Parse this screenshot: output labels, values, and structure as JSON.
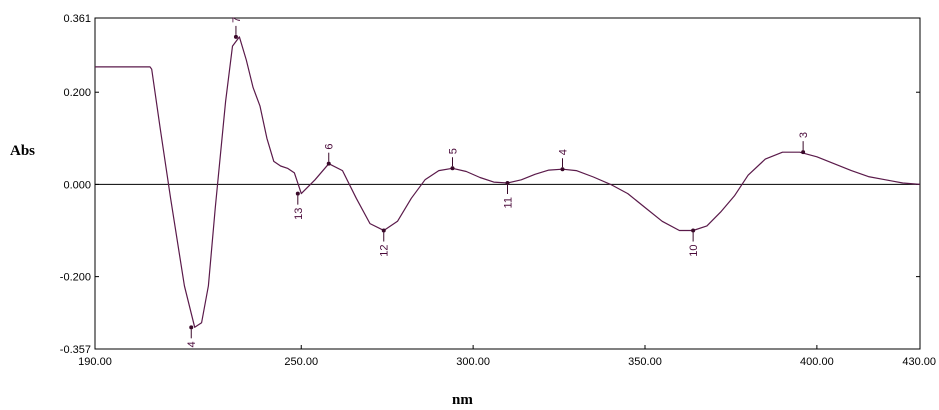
{
  "chart_data": {
    "type": "line",
    "xlabel": "nm",
    "ylabel": "Abs",
    "xlim": [
      190,
      430
    ],
    "ylim": [
      -0.357,
      0.361
    ],
    "x_ticks": [
      "190.00",
      "250.00",
      "300.00",
      "350.00",
      "400.00",
      "430.00"
    ],
    "x_tick_values": [
      190,
      250,
      300,
      350,
      400,
      430
    ],
    "y_ticks": [
      "0.361",
      "0.200",
      "0.000",
      "-0.200",
      "-0.357"
    ],
    "y_tick_values": [
      0.361,
      0.2,
      0.0,
      -0.2,
      -0.357
    ],
    "zero_line": true,
    "grid": false,
    "colors": {
      "curve": "#5a1a4a",
      "axis": "#000000",
      "marker": "#3a0a2a"
    },
    "series": [
      {
        "values_x": [
          190,
          206,
          206.5,
          209,
          212,
          216,
          219,
          221,
          223,
          225,
          228,
          230,
          232,
          234,
          236,
          238,
          240,
          242,
          244,
          246,
          248,
          250,
          254,
          258,
          262,
          266,
          270,
          274,
          278,
          282,
          286,
          290,
          294,
          298,
          302,
          306,
          310,
          314,
          318,
          322,
          326,
          330,
          335,
          340,
          345,
          350,
          355,
          360,
          364,
          368,
          372,
          376,
          380,
          385,
          390,
          395,
          400,
          405,
          410,
          415,
          420,
          425,
          430
        ],
        "values_y": [
          0.255,
          0.255,
          0.25,
          0.12,
          -0.03,
          -0.22,
          -0.31,
          -0.3,
          -0.22,
          -0.05,
          0.18,
          0.3,
          0.32,
          0.27,
          0.21,
          0.17,
          0.1,
          0.05,
          0.04,
          0.035,
          0.025,
          -0.02,
          0.01,
          0.045,
          0.03,
          -0.03,
          -0.085,
          -0.1,
          -0.08,
          -0.03,
          0.01,
          0.03,
          0.035,
          0.028,
          0.015,
          0.005,
          0.003,
          0.01,
          0.022,
          0.031,
          0.033,
          0.03,
          0.016,
          0.0,
          -0.02,
          -0.05,
          -0.08,
          -0.1,
          -0.1,
          -0.09,
          -0.06,
          -0.025,
          0.02,
          0.055,
          0.07,
          0.07,
          0.06,
          0.045,
          0.03,
          0.017,
          0.01,
          0.003,
          0.0
        ]
      }
    ],
    "annotations": [
      {
        "label": "7",
        "x": 231,
        "y": 0.32,
        "dir": "up"
      },
      {
        "label": "6",
        "x": 258,
        "y": 0.045,
        "dir": "up"
      },
      {
        "label": "5",
        "x": 294,
        "y": 0.035,
        "dir": "up"
      },
      {
        "label": "4",
        "x": 326,
        "y": 0.033,
        "dir": "up"
      },
      {
        "label": "3",
        "x": 396,
        "y": 0.07,
        "dir": "up"
      },
      {
        "label": "4",
        "x": 218,
        "y": -0.31,
        "dir": "down"
      },
      {
        "label": "13",
        "x": 249,
        "y": -0.02,
        "dir": "down"
      },
      {
        "label": "12",
        "x": 274,
        "y": -0.1,
        "dir": "down"
      },
      {
        "label": "11",
        "x": 310,
        "y": 0.003,
        "dir": "down"
      },
      {
        "label": "10",
        "x": 364,
        "y": -0.1,
        "dir": "down"
      }
    ]
  }
}
